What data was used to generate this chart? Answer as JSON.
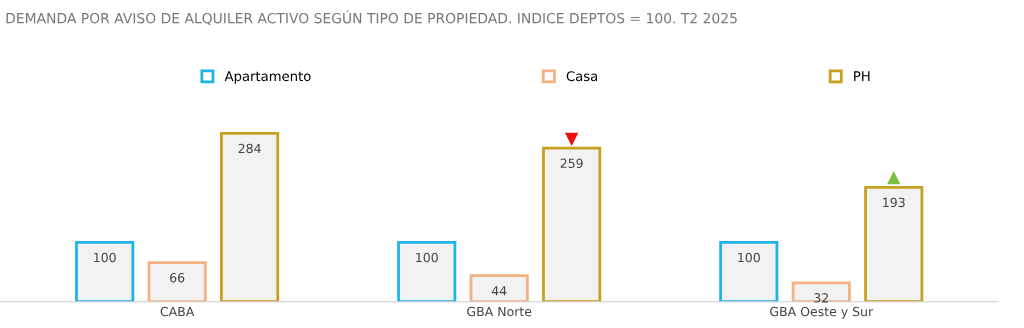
{
  "chart_data": {
    "type": "bar",
    "title": "DEMANDA POR AVISO DE ALQUILER ACTIVO SEGÚN TIPO DE PROPIEDAD. INDICE DEPTOS = 100. T2 2025",
    "categories": [
      "CABA",
      "GBA Norte",
      "GBA Oeste y Sur"
    ],
    "series": [
      {
        "name": "Apartamento",
        "color": "#1eb4ea",
        "values": [
          100,
          100,
          100
        ]
      },
      {
        "name": "Casa",
        "color": "#f4b183",
        "values": [
          66,
          44,
          32
        ]
      },
      {
        "name": "PH",
        "color": "#c8a020",
        "values": [
          284,
          259,
          193
        ]
      }
    ],
    "data_labels": true,
    "legend": "top",
    "grid": false
  }
}
